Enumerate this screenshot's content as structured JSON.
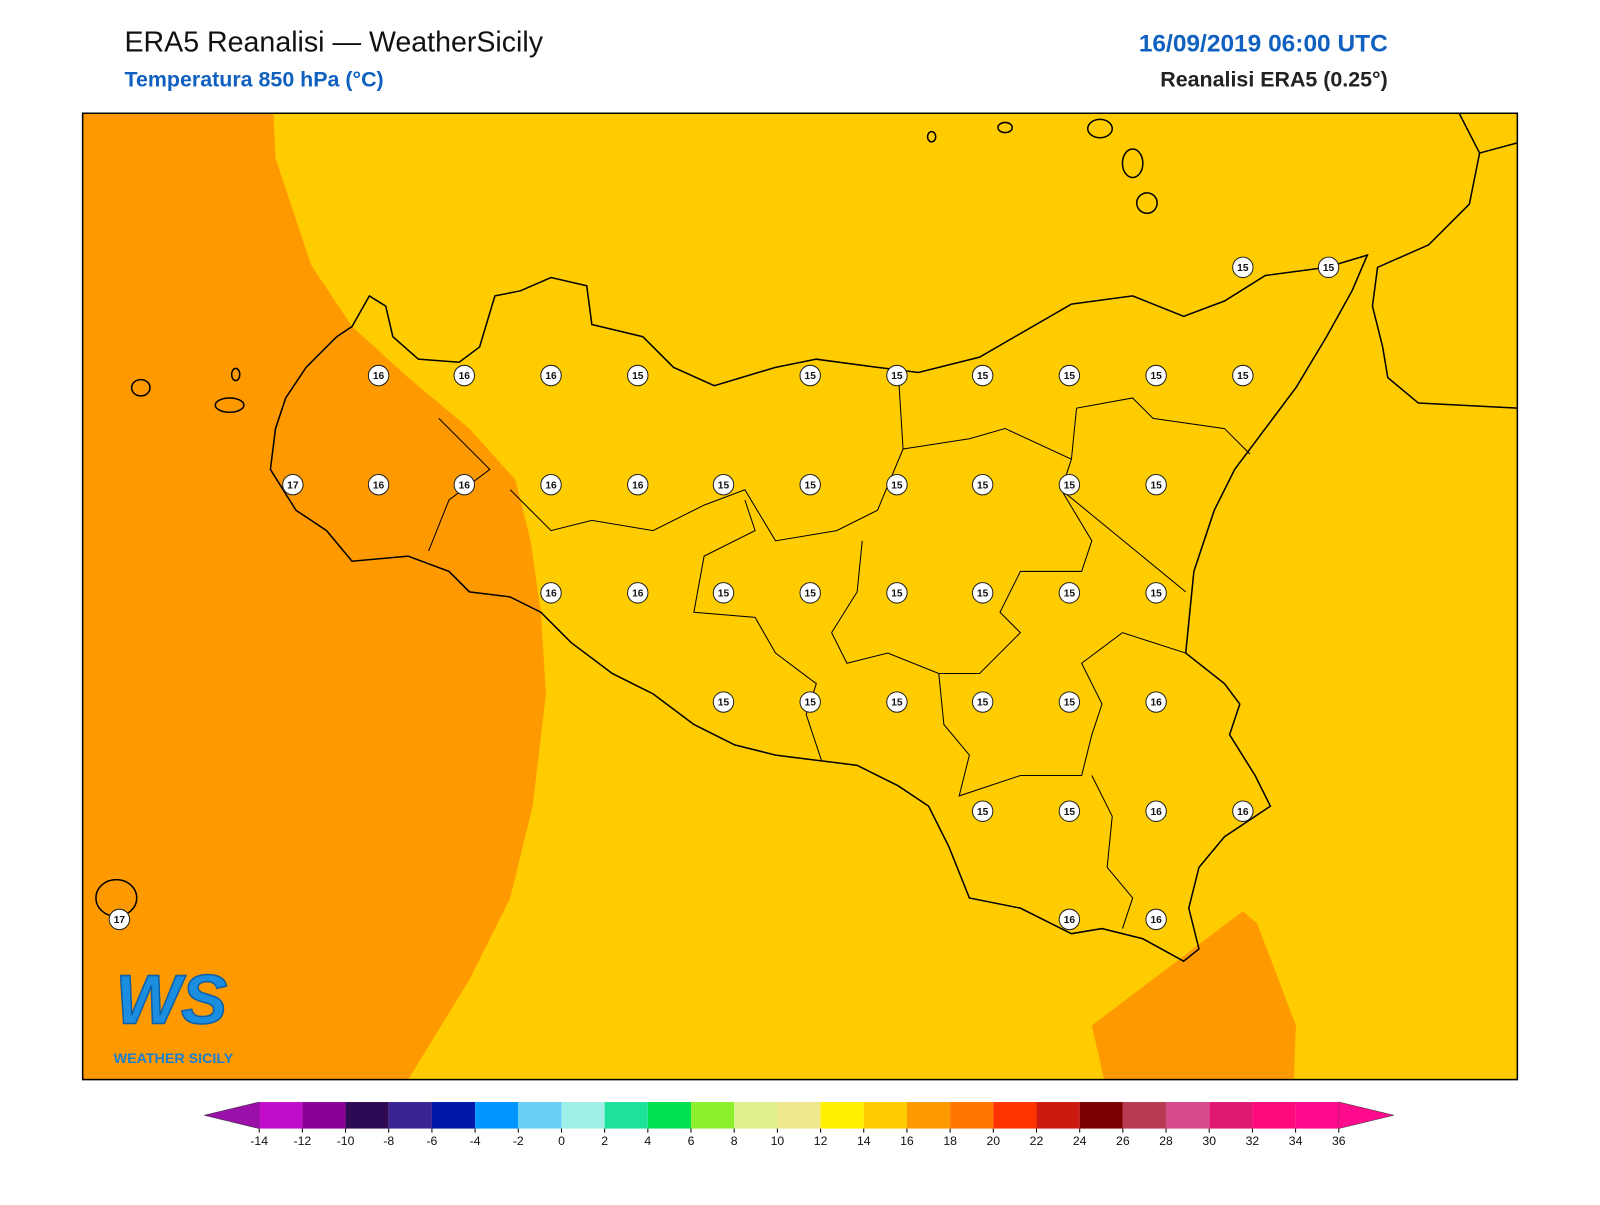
{
  "header": {
    "title": "ERA5 Reanalisi — WeatherSicily",
    "subtitle": "Temperatura 850 hPa (°C)",
    "date": "16/09/2019 06:00 UTC",
    "source": "Reanalisi ERA5 (0.25°)"
  },
  "map": {
    "fill_colors": [
      "#ff9900",
      "#ffcc00"
    ],
    "coast_color": "#000000"
  },
  "stations": {
    "values": [
      15,
      15,
      16,
      16,
      16,
      15,
      15,
      15,
      15,
      15,
      15,
      15,
      17,
      16,
      16,
      16,
      16,
      15,
      15,
      15,
      15,
      15,
      15,
      16,
      16,
      15,
      15,
      15,
      15,
      15,
      15,
      15,
      15,
      15,
      15,
      15,
      16,
      15,
      15,
      16,
      16,
      17,
      16,
      16
    ]
  },
  "colorbar": {
    "ticks": [
      -14,
      -12,
      -10,
      -8,
      -6,
      -4,
      -2,
      0,
      2,
      4,
      6,
      8,
      10,
      12,
      14,
      16,
      18,
      20,
      22,
      24,
      26,
      28,
      30,
      32,
      34,
      36
    ],
    "under": "#9a10a8",
    "over": "#ff0a8c",
    "colors": [
      "#c20ccb",
      "#8a0094",
      "#2e0a54",
      "#3a2390",
      "#0018a8",
      "#0096ff",
      "#6ccff6",
      "#9ef0e8",
      "#1de39a",
      "#00e050",
      "#8cf02c",
      "#dff08c",
      "#f0e68c",
      "#fff000",
      "#ffcc00",
      "#ff9900",
      "#ff7700",
      "#ff3300",
      "#cc1a10",
      "#7a0000",
      "#b83a52",
      "#d44a8a",
      "#e01874",
      "#ff0a7a",
      "#ff0a8c"
    ]
  },
  "logo": {
    "mark": "WS",
    "text": "WEATHER SICILY"
  }
}
